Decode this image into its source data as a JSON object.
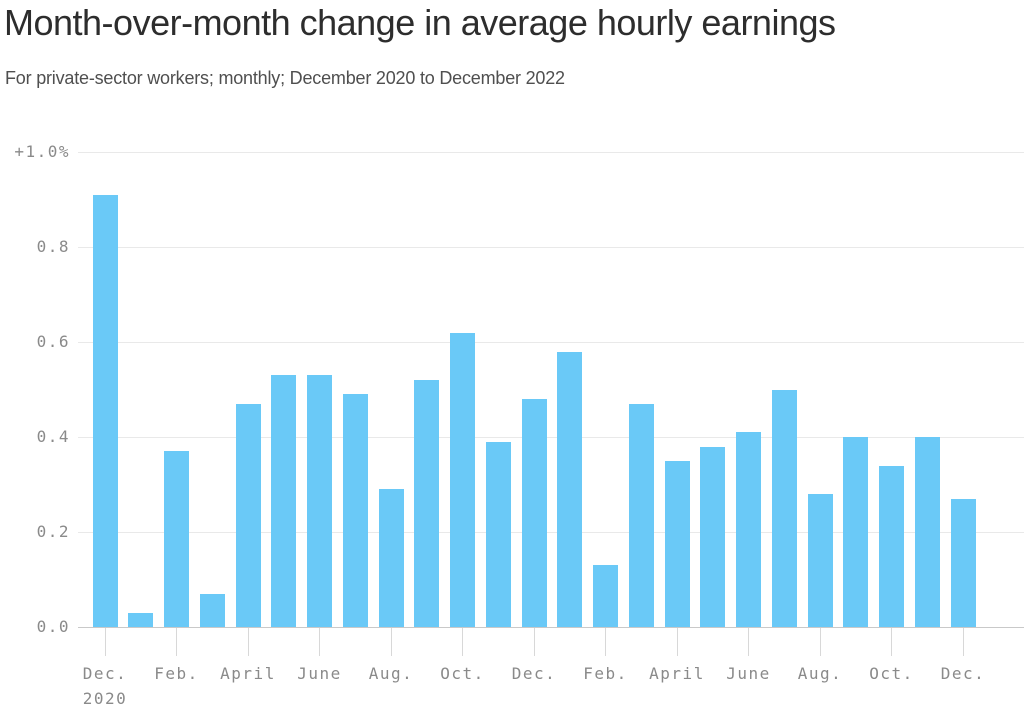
{
  "header": {
    "title": "Month-over-month change in average hourly earnings",
    "subtitle": "For private-sector workers; monthly; December 2020 to December 2022"
  },
  "chart_data": {
    "type": "bar",
    "title": "Month-over-month change in average hourly earnings",
    "subtitle": "For private-sector workers; monthly; December 2020 to December 2022",
    "unit": "%",
    "bar_color": "#6AC9F7",
    "grid": true,
    "ylim": [
      0,
      1.0
    ],
    "y_ticks": [
      "+1.0%",
      "0.8",
      "0.6",
      "0.4",
      "0.2",
      "0.0"
    ],
    "x": [
      "Dec. 2020",
      "Jan. 2021",
      "Feb. 2021",
      "March 2021",
      "April 2021",
      "May 2021",
      "June 2021",
      "July 2021",
      "Aug. 2021",
      "Sep. 2021",
      "Oct. 2021",
      "Nov. 2021",
      "Dec. 2021",
      "Jan. 2022",
      "Feb. 2022",
      "March 2022",
      "April 2022",
      "May 2022",
      "June 2022",
      "July 2022",
      "Aug. 2022",
      "Sep. 2022",
      "Oct. 2022",
      "Nov. 2022",
      "Dec. 2022"
    ],
    "values": [
      0.91,
      0.03,
      0.37,
      0.07,
      0.47,
      0.53,
      0.53,
      0.49,
      0.29,
      0.52,
      0.62,
      0.39,
      0.48,
      0.58,
      0.13,
      0.47,
      0.35,
      0.38,
      0.41,
      0.5,
      0.28,
      0.4,
      0.34,
      0.4,
      0.27
    ],
    "x_tick_labels": [
      {
        "text": "Dec.",
        "sub": "2020",
        "bar_index": 0
      },
      {
        "text": "Feb.",
        "bar_index": 2
      },
      {
        "text": "April",
        "bar_index": 4
      },
      {
        "text": "June",
        "bar_index": 6
      },
      {
        "text": "Aug.",
        "bar_index": 8
      },
      {
        "text": "Oct.",
        "bar_index": 10
      },
      {
        "text": "Dec.",
        "bar_index": 12
      },
      {
        "text": "Feb.",
        "bar_index": 14
      },
      {
        "text": "April",
        "bar_index": 16
      },
      {
        "text": "June",
        "bar_index": 18
      },
      {
        "text": "Aug.",
        "bar_index": 20
      },
      {
        "text": "Oct.",
        "bar_index": 22
      },
      {
        "text": "Dec.",
        "bar_index": 24
      }
    ]
  }
}
